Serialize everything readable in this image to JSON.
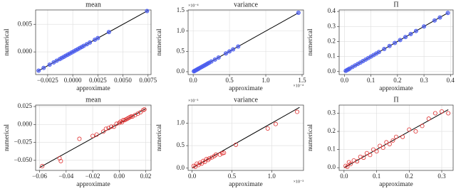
{
  "chart_data": [
    {
      "type": "scatter",
      "title": "mean",
      "x_label": "approximate",
      "y_label": "numerical",
      "color": "#4a5cf0",
      "filled": true,
      "grid": true,
      "x": [
        -0.0034,
        -0.0029,
        -0.0023,
        -0.0019,
        -0.0016,
        -0.0013,
        -0.0011,
        -0.0009,
        -0.0007,
        -0.0005,
        -0.0003,
        -0.0001,
        0.0001,
        0.0003,
        0.0005,
        0.0007,
        0.0009,
        0.0011,
        0.0014,
        0.0017,
        0.0022,
        0.0025,
        0.0036,
        0.0074
      ],
      "y": [
        -0.0034,
        -0.0029,
        -0.0023,
        -0.0019,
        -0.0016,
        -0.0013,
        -0.0011,
        -0.0009,
        -0.0007,
        -0.0005,
        -0.0003,
        -0.0001,
        0.0001,
        0.0003,
        0.0005,
        0.0007,
        0.0009,
        0.0011,
        0.0014,
        0.0017,
        0.0022,
        0.0025,
        0.0036,
        0.0074
      ],
      "line": {
        "x": [
          -0.0035,
          0.0075
        ],
        "y": [
          -0.0035,
          0.0075
        ]
      },
      "xlim": [
        -0.0037,
        0.0078
      ],
      "ylim": [
        -0.0041,
        0.0076
      ],
      "xticks": [
        {
          "value": -0.0025,
          "label": "−0.0025"
        },
        {
          "value": 0,
          "label": "0.0000"
        },
        0.0025,
        {
          "value": 0.005,
          "label": "0.0050"
        },
        0.0075
      ],
      "yticks": [
        {
          "value": 0,
          "label": "0.000"
        },
        0.005
      ]
    },
    {
      "type": "scatter",
      "title": "variance",
      "x_label": "approximate",
      "y_label": "numerical",
      "color": "#4a5cf0",
      "filled": true,
      "grid": true,
      "x_offset_label": "×10⁻⁴",
      "y_offset_label": "×10⁻⁴",
      "x": [
        0.01,
        0.02,
        0.03,
        0.04,
        0.05,
        0.06,
        0.07,
        0.08,
        0.1,
        0.12,
        0.14,
        0.16,
        0.18,
        0.2,
        0.22,
        0.25,
        0.3,
        0.35,
        0.45,
        0.5,
        0.55,
        0.62,
        1.45
      ],
      "y": [
        0.01,
        0.02,
        0.03,
        0.04,
        0.05,
        0.06,
        0.07,
        0.08,
        0.1,
        0.12,
        0.14,
        0.16,
        0.18,
        0.2,
        0.22,
        0.25,
        0.3,
        0.35,
        0.45,
        0.5,
        0.55,
        0.62,
        1.45
      ],
      "line": {
        "x": [
          0,
          1.45
        ],
        "y": [
          0,
          1.45
        ]
      },
      "xlim": [
        -0.07,
        1.52
      ],
      "ylim": [
        -0.07,
        1.52
      ],
      "xticks": [
        {
          "value": 0,
          "label": "0.0"
        },
        0.5,
        {
          "value": 1,
          "label": "1.0"
        },
        1.5
      ],
      "yticks": [
        {
          "value": 0,
          "label": "0.0"
        },
        0.5,
        {
          "value": 1,
          "label": "1.0"
        },
        1.5
      ]
    },
    {
      "type": "scatter",
      "title": "Π",
      "x_label": "approximate",
      "y_label": "numerical",
      "color": "#4a5cf0",
      "filled": true,
      "grid": true,
      "x": [
        0.005,
        0.01,
        0.015,
        0.02,
        0.03,
        0.04,
        0.05,
        0.06,
        0.07,
        0.08,
        0.09,
        0.1,
        0.11,
        0.12,
        0.13,
        0.15,
        0.17,
        0.19,
        0.21,
        0.23,
        0.25,
        0.27,
        0.3,
        0.34,
        0.36,
        0.39
      ],
      "y": [
        0.005,
        0.01,
        0.015,
        0.02,
        0.03,
        0.04,
        0.05,
        0.06,
        0.07,
        0.08,
        0.09,
        0.1,
        0.11,
        0.12,
        0.13,
        0.15,
        0.17,
        0.19,
        0.21,
        0.23,
        0.25,
        0.27,
        0.3,
        0.34,
        0.36,
        0.39
      ],
      "line": {
        "x": [
          0,
          0.39
        ],
        "y": [
          0,
          0.39
        ]
      },
      "xlim": [
        -0.02,
        0.41
      ],
      "ylim": [
        -0.02,
        0.41
      ],
      "xticks": [
        {
          "value": 0,
          "label": "0.0"
        },
        0.1,
        0.2,
        0.3,
        0.4
      ],
      "yticks": [
        {
          "value": 0,
          "label": "0.0"
        },
        0.1,
        0.2,
        0.3,
        0.4
      ]
    },
    {
      "type": "scatter",
      "title": "mean",
      "x_label": "approximate",
      "y_label": "numerical",
      "color": "#e03030",
      "filled": false,
      "grid": true,
      "x": [
        -0.058,
        -0.045,
        -0.044,
        -0.03,
        -0.02,
        -0.017,
        -0.012,
        -0.01,
        -0.008,
        -0.006,
        -0.004,
        -0.002,
        0,
        0.001,
        0.002,
        0.003,
        0.004,
        0.005,
        0.006,
        0.007,
        0.008,
        0.009,
        0.01,
        0.012,
        0.014,
        0.016,
        0.018,
        0.019
      ],
      "y": [
        -0.058,
        -0.047,
        -0.051,
        -0.02,
        -0.016,
        -0.014,
        -0.01,
        -0.006,
        -0.005,
        -0.003,
        -0.003,
        0.001,
        0.002,
        0.004,
        0.003,
        0.006,
        0.006,
        0.007,
        0.008,
        0.009,
        0.01,
        0.011,
        0.011,
        0.013,
        0.015,
        0.017,
        0.02,
        0.021
      ],
      "line": {
        "x": [
          -0.06,
          0.02
        ],
        "y": [
          -0.06,
          0.022
        ]
      },
      "xlim": [
        -0.063,
        0.024
      ],
      "ylim": [
        -0.064,
        0.027
      ],
      "xticks": [
        {
          "value": -0.06,
          "label": "−0.06"
        },
        {
          "value": -0.04,
          "label": "−0.04"
        },
        {
          "value": -0.02,
          "label": "−0.02"
        },
        {
          "value": 0,
          "label": "0.00"
        },
        0.02
      ],
      "yticks": [
        {
          "value": -0.05,
          "label": "−0.050"
        },
        {
          "value": -0.025,
          "label": "−0.025"
        },
        {
          "value": 0,
          "label": "0.000"
        },
        0.025
      ]
    },
    {
      "type": "scatter",
      "title": "variance",
      "x_label": "approximate",
      "y_label": "numerical",
      "color": "#e03030",
      "filled": false,
      "grid": true,
      "x_offset_label": "×10⁻³",
      "y_offset_label": "×10⁻³",
      "x": [
        0.02,
        0.04,
        0.06,
        0.08,
        0.1,
        0.12,
        0.14,
        0.16,
        0.18,
        0.2,
        0.22,
        0.25,
        0.28,
        0.3,
        0.35,
        0.38,
        0.4,
        0.55,
        0.95,
        1.05,
        1.32
      ],
      "y": [
        0.05,
        0.03,
        0.1,
        0.07,
        0.12,
        0.1,
        0.16,
        0.14,
        0.2,
        0.18,
        0.22,
        0.24,
        0.27,
        0.3,
        0.3,
        0.33,
        0.34,
        0.52,
        0.88,
        0.98,
        1.25
      ],
      "line": {
        "x": [
          0,
          1.35
        ],
        "y": [
          0,
          1.35
        ]
      },
      "xlim": [
        -0.05,
        1.4
      ],
      "ylim": [
        -0.05,
        1.4
      ],
      "xticks": [
        {
          "value": 0,
          "label": "0.0"
        },
        0.5,
        {
          "value": 1,
          "label": "1.0"
        }
      ],
      "yticks": [
        {
          "value": 0,
          "label": "0.0"
        },
        0.5,
        {
          "value": 1,
          "label": "1.0"
        }
      ]
    },
    {
      "type": "scatter",
      "title": "Π",
      "x_label": "approximate",
      "y_label": "numerical",
      "color": "#e03030",
      "filled": false,
      "grid": true,
      "x": [
        0.005,
        0.01,
        0.015,
        0.02,
        0.03,
        0.04,
        0.05,
        0.06,
        0.07,
        0.08,
        0.09,
        0.1,
        0.11,
        0.12,
        0.13,
        0.14,
        0.15,
        0.16,
        0.18,
        0.2,
        0.22,
        0.24,
        0.26,
        0.28,
        0.3,
        0.32
      ],
      "y": [
        0.01,
        0.005,
        0.03,
        0.02,
        0.04,
        0.035,
        0.06,
        0.055,
        0.08,
        0.07,
        0.1,
        0.09,
        0.12,
        0.11,
        0.14,
        0.13,
        0.15,
        0.17,
        0.17,
        0.21,
        0.2,
        0.23,
        0.27,
        0.3,
        0.31,
        0.3
      ],
      "line": {
        "x": [
          0,
          0.32
        ],
        "y": [
          0,
          0.32
        ]
      },
      "xlim": [
        -0.015,
        0.335
      ],
      "ylim": [
        -0.015,
        0.345
      ],
      "xticks": [
        {
          "value": 0,
          "label": "0.0"
        },
        0.1,
        0.2,
        0.3
      ],
      "yticks": [
        {
          "value": 0,
          "label": "0.0"
        },
        0.1,
        0.2,
        0.3
      ]
    }
  ]
}
